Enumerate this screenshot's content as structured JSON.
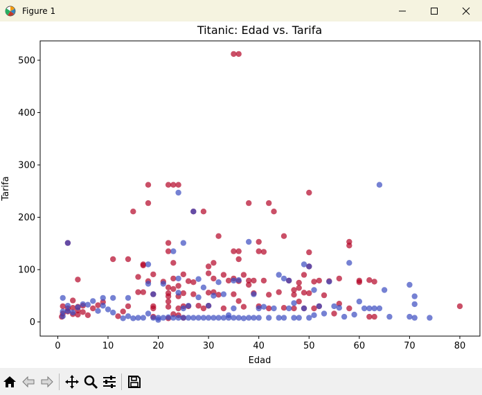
{
  "window": {
    "title": "Figure 1"
  },
  "colors": {
    "survived": "#b40426",
    "not_survived": "#3b4cc0",
    "titlebar": "#f5f3e0",
    "toolbar": "#f0f0f0"
  },
  "toolbar": {
    "icons": [
      "home-icon",
      "back-icon",
      "forward-icon",
      "pan-icon",
      "zoom-icon",
      "configure-subplots-icon",
      "save-icon"
    ]
  },
  "chart_data": {
    "type": "scatter",
    "title": "Titanic: Edad vs. Tarifa",
    "xlabel": "Edad",
    "ylabel": "Tarifa",
    "xlim": [
      -3.5,
      84
    ],
    "ylim": [
      -27,
      537
    ],
    "xticks": [
      0,
      10,
      20,
      30,
      40,
      50,
      60,
      70,
      80
    ],
    "yticks": [
      0,
      100,
      200,
      300,
      400,
      500
    ],
    "grid": false,
    "color_encoding": "survival (red = survived, blue = did not survive)",
    "series": [
      {
        "color": "#b40426",
        "points": [
          [
            0.8,
            10
          ],
          [
            1,
            16
          ],
          [
            1,
            30
          ],
          [
            2,
            20
          ],
          [
            2,
            26
          ],
          [
            2,
            151
          ],
          [
            3,
            15
          ],
          [
            3,
            41
          ],
          [
            3,
            27
          ],
          [
            4,
            22
          ],
          [
            4,
            29
          ],
          [
            4,
            81
          ],
          [
            4,
            14
          ],
          [
            5,
            19
          ],
          [
            5,
            31
          ],
          [
            6,
            13
          ],
          [
            7,
            26
          ],
          [
            8,
            32
          ],
          [
            9,
            38
          ],
          [
            11,
            120
          ],
          [
            12,
            11
          ],
          [
            13,
            20
          ],
          [
            14,
            120
          ],
          [
            14,
            30
          ],
          [
            15,
            211
          ],
          [
            16,
            86
          ],
          [
            16,
            57
          ],
          [
            17,
            110
          ],
          [
            17,
            108
          ],
          [
            17,
            57
          ],
          [
            18,
            262
          ],
          [
            18,
            227
          ],
          [
            18,
            78
          ],
          [
            19,
            91
          ],
          [
            19,
            26
          ],
          [
            19,
            53
          ],
          [
            19,
            30
          ],
          [
            19,
            10
          ],
          [
            21,
            77
          ],
          [
            22,
            262
          ],
          [
            22,
            151
          ],
          [
            22,
            135
          ],
          [
            22,
            66
          ],
          [
            22,
            55
          ],
          [
            22,
            49
          ],
          [
            22,
            39
          ],
          [
            22,
            29
          ],
          [
            22,
            7
          ],
          [
            23,
            262
          ],
          [
            23,
            113
          ],
          [
            23,
            83
          ],
          [
            23,
            63
          ],
          [
            23,
            15
          ],
          [
            24,
            262
          ],
          [
            24,
            69
          ],
          [
            24,
            49
          ],
          [
            24,
            26
          ],
          [
            24,
            13
          ],
          [
            25,
            91
          ],
          [
            25,
            55
          ],
          [
            25,
            30
          ],
          [
            25,
            8
          ],
          [
            26,
            78
          ],
          [
            26,
            30
          ],
          [
            27,
            211
          ],
          [
            27,
            76
          ],
          [
            27,
            53
          ],
          [
            28,
            31
          ],
          [
            29,
            211
          ],
          [
            29,
            26
          ],
          [
            30,
            106
          ],
          [
            30,
            93
          ],
          [
            30,
            56
          ],
          [
            30,
            31
          ],
          [
            31,
            113
          ],
          [
            31,
            83
          ],
          [
            31,
            57
          ],
          [
            32,
            164
          ],
          [
            32,
            52
          ],
          [
            33,
            90
          ],
          [
            33,
            26
          ],
          [
            34,
            79
          ],
          [
            35,
            512
          ],
          [
            35,
            135
          ],
          [
            35,
            83
          ],
          [
            35,
            53
          ],
          [
            36,
            512
          ],
          [
            36,
            135
          ],
          [
            36,
            120
          ],
          [
            36,
            78
          ],
          [
            36,
            40
          ],
          [
            37,
            90
          ],
          [
            37,
            29
          ],
          [
            38,
            227
          ],
          [
            38,
            79
          ],
          [
            38,
            71
          ],
          [
            39,
            79
          ],
          [
            39,
            55
          ],
          [
            40,
            153
          ],
          [
            40,
            135
          ],
          [
            40,
            30
          ],
          [
            41,
            134
          ],
          [
            41,
            79
          ],
          [
            42,
            227
          ],
          [
            42,
            52
          ],
          [
            42,
            26
          ],
          [
            43,
            211
          ],
          [
            44,
            57
          ],
          [
            45,
            164
          ],
          [
            45,
            27
          ],
          [
            46,
            79
          ],
          [
            47,
            61
          ],
          [
            47,
            52
          ],
          [
            47,
            26
          ],
          [
            48,
            75
          ],
          [
            48,
            65
          ],
          [
            48,
            39
          ],
          [
            49,
            90
          ],
          [
            49,
            56
          ],
          [
            49,
            26
          ],
          [
            50,
            247
          ],
          [
            50,
            133
          ],
          [
            50,
            106
          ],
          [
            50,
            55
          ],
          [
            51,
            77
          ],
          [
            51,
            26
          ],
          [
            52,
            79
          ],
          [
            52,
            30
          ],
          [
            53,
            51
          ],
          [
            54,
            78
          ],
          [
            55,
            16
          ],
          [
            56,
            83
          ],
          [
            56,
            35
          ],
          [
            58,
            153
          ],
          [
            58,
            146
          ],
          [
            58,
            26
          ],
          [
            60,
            79
          ],
          [
            60,
            76
          ],
          [
            62,
            80
          ],
          [
            62,
            10
          ],
          [
            63,
            77
          ],
          [
            63,
            10
          ],
          [
            80,
            30
          ]
        ]
      },
      {
        "color": "#3b4cc0",
        "points": [
          [
            1,
            46
          ],
          [
            1,
            20
          ],
          [
            1,
            11
          ],
          [
            2,
            151
          ],
          [
            2,
            31
          ],
          [
            2,
            21
          ],
          [
            3,
            18
          ],
          [
            4,
            28
          ],
          [
            5,
            34
          ],
          [
            6,
            33
          ],
          [
            7,
            40
          ],
          [
            8,
            21
          ],
          [
            9,
            46
          ],
          [
            9,
            31
          ],
          [
            10,
            24
          ],
          [
            11,
            46
          ],
          [
            11,
            18
          ],
          [
            13,
            7
          ],
          [
            14,
            46
          ],
          [
            14,
            11
          ],
          [
            15,
            7
          ],
          [
            16,
            8
          ],
          [
            17,
            8
          ],
          [
            18,
            110
          ],
          [
            18,
            73
          ],
          [
            18,
            16
          ],
          [
            19,
            53
          ],
          [
            19,
            8
          ],
          [
            20,
            8
          ],
          [
            20,
            4
          ],
          [
            21,
            73
          ],
          [
            21,
            8
          ],
          [
            22,
            9
          ],
          [
            23,
            135
          ],
          [
            23,
            8
          ],
          [
            24,
            247
          ],
          [
            24,
            83
          ],
          [
            24,
            56
          ],
          [
            24,
            8
          ],
          [
            25,
            151
          ],
          [
            25,
            26
          ],
          [
            25,
            8
          ],
          [
            26,
            31
          ],
          [
            26,
            8
          ],
          [
            27,
            211
          ],
          [
            27,
            8
          ],
          [
            28,
            82
          ],
          [
            28,
            47
          ],
          [
            28,
            8
          ],
          [
            29,
            66
          ],
          [
            29,
            8
          ],
          [
            30,
            31
          ],
          [
            30,
            8
          ],
          [
            31,
            50
          ],
          [
            31,
            8
          ],
          [
            32,
            76
          ],
          [
            32,
            8
          ],
          [
            33,
            53
          ],
          [
            33,
            8
          ],
          [
            34,
            13
          ],
          [
            34,
            8
          ],
          [
            35,
            79
          ],
          [
            35,
            26
          ],
          [
            35,
            8
          ],
          [
            36,
            80
          ],
          [
            36,
            8
          ],
          [
            37,
            7
          ],
          [
            38,
            153
          ],
          [
            38,
            8
          ],
          [
            39,
            53
          ],
          [
            39,
            8
          ],
          [
            40,
            26
          ],
          [
            40,
            8
          ],
          [
            41,
            29
          ],
          [
            42,
            8
          ],
          [
            43,
            26
          ],
          [
            44,
            90
          ],
          [
            44,
            8
          ],
          [
            45,
            83
          ],
          [
            45,
            8
          ],
          [
            46,
            79
          ],
          [
            46,
            26
          ],
          [
            47,
            36
          ],
          [
            47,
            8
          ],
          [
            48,
            8
          ],
          [
            49,
            110
          ],
          [
            49,
            26
          ],
          [
            50,
            106
          ],
          [
            50,
            8
          ],
          [
            51,
            61
          ],
          [
            51,
            13
          ],
          [
            52,
            30
          ],
          [
            53,
            16
          ],
          [
            54,
            77
          ],
          [
            55,
            30
          ],
          [
            56,
            27
          ],
          [
            57,
            10
          ],
          [
            58,
            113
          ],
          [
            59,
            14
          ],
          [
            60,
            39
          ],
          [
            61,
            26
          ],
          [
            62,
            26
          ],
          [
            63,
            26
          ],
          [
            64,
            262
          ],
          [
            64,
            26
          ],
          [
            65,
            61
          ],
          [
            66,
            10
          ],
          [
            70,
            71
          ],
          [
            70,
            10
          ],
          [
            71,
            49
          ],
          [
            71,
            34
          ],
          [
            71,
            8
          ],
          [
            74,
            8
          ]
        ]
      }
    ]
  }
}
